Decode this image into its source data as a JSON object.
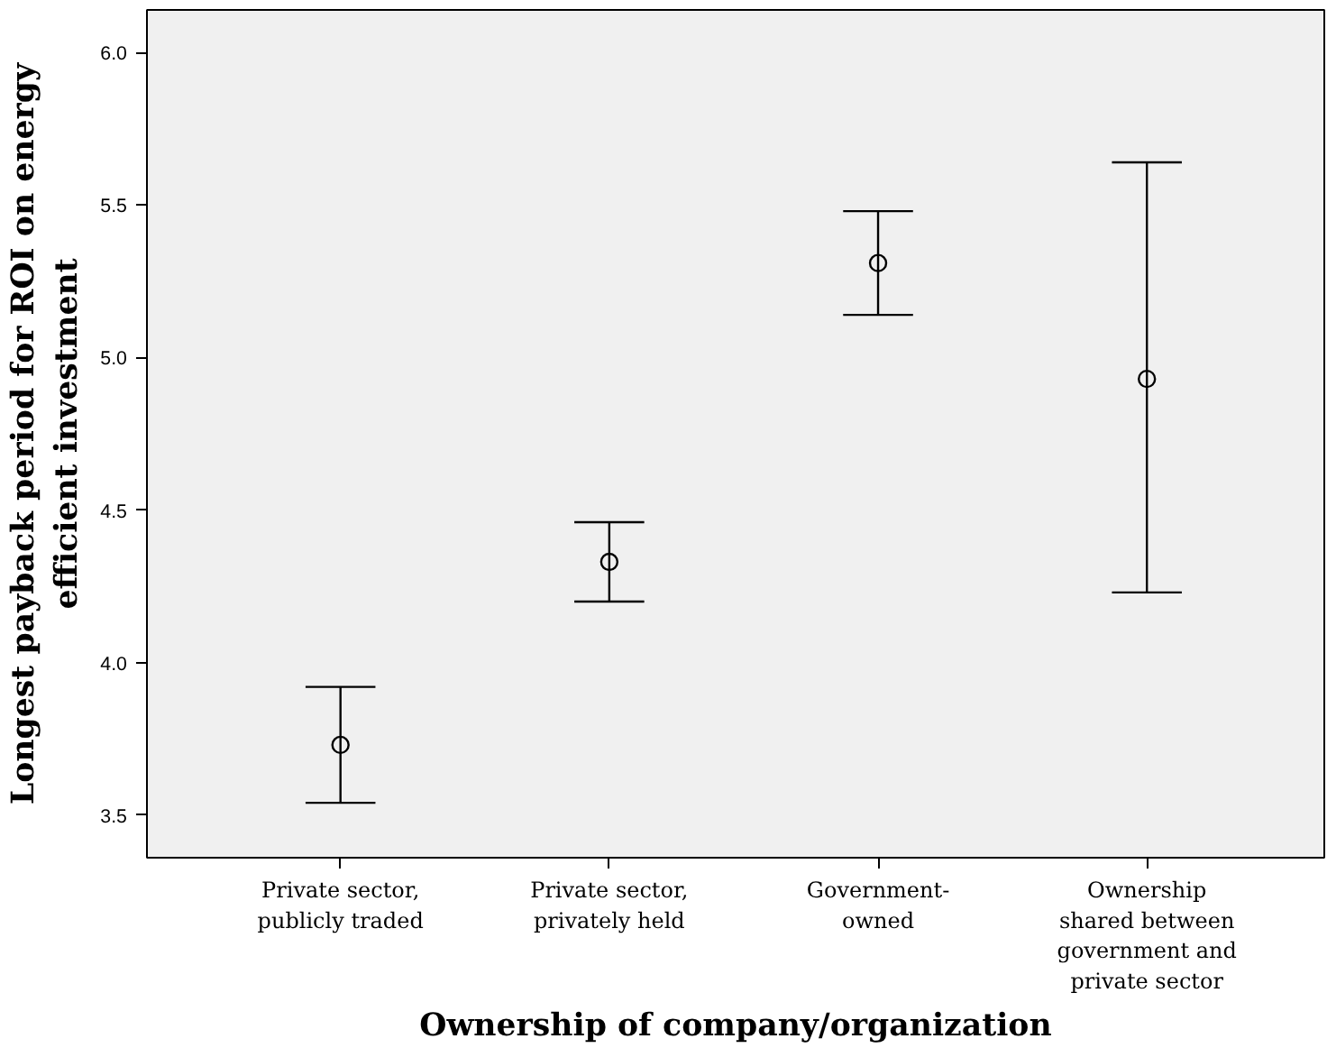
{
  "chart_data": {
    "type": "scatter",
    "xlabel": "Ownership of company/organization",
    "ylabel": "Longest payback period for ROI on energy\nefficient investment",
    "categories": [
      "Private sector,\npublicly traded",
      "Private sector,\nprivately held",
      "Government-\nowned",
      "Ownership\nshared between\ngovernment and\nprivate sector"
    ],
    "series": [
      {
        "color": "#000000",
        "values": [
          3.73,
          4.33,
          5.31,
          4.93
        ],
        "errors": [
          [
            3.54,
            3.92
          ],
          [
            4.2,
            4.46
          ],
          [
            5.14,
            5.48
          ],
          [
            4.23,
            5.64
          ]
        ]
      }
    ],
    "marker": "circle",
    "ylim": [
      3.36,
      6.14
    ],
    "yticks": [
      {
        "value": 3.5,
        "label": "3.5"
      },
      {
        "value": 4.0,
        "label": "4.0"
      },
      {
        "value": 4.5,
        "label": "4.5"
      },
      {
        "value": 5.0,
        "label": "5.0"
      },
      {
        "value": 5.5,
        "label": "5.5"
      },
      {
        "value": 6.0,
        "label": "6.0"
      }
    ],
    "grid": false
  }
}
